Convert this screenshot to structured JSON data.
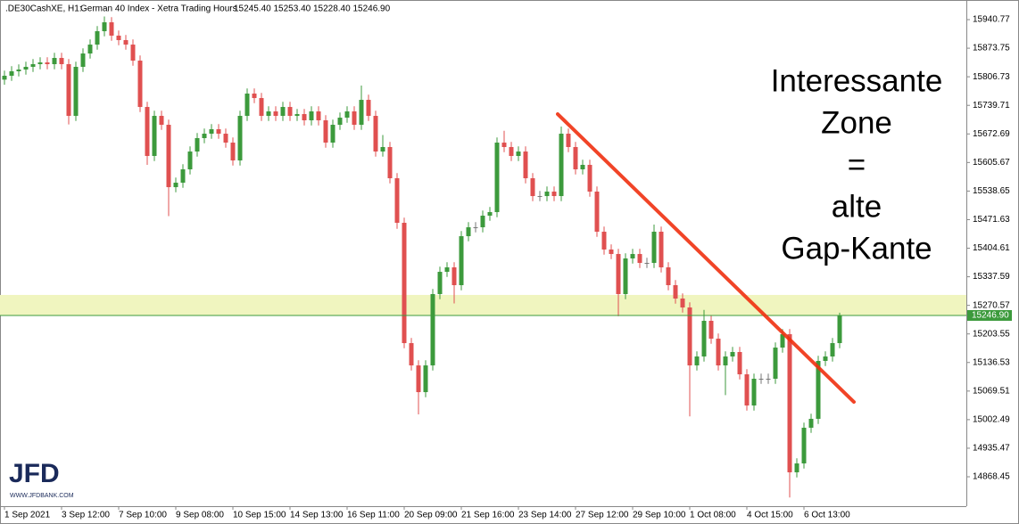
{
  "chart_data": {
    "type": "candlestick",
    "header": {
      "symbol": ".DE30CashXE, H1:",
      "description": "German 40 Index  - Xetra Trading Hours",
      "quote": "15245.40 15253.40 15228.40 15246.90"
    },
    "annotation": [
      "Interessante",
      "Zone",
      "=",
      "alte",
      "Gap-Kante"
    ],
    "logo": {
      "name": "JFD",
      "url": "WWW.JFDBANK.COM"
    },
    "up_color": "#3c9a3c",
    "down_color": "#e05050",
    "xlim": [
      -0.625,
      134.75
    ],
    "ylim": [
      14799.5,
      15986.8
    ],
    "yticks": [
      15940.77,
      15873.75,
      15806.73,
      15739.71,
      15672.69,
      15605.67,
      15538.65,
      15471.63,
      15404.61,
      15337.59,
      15270.57,
      15203.55,
      15136.53,
      15069.51,
      15002.49,
      14935.47,
      14868.45
    ],
    "xticks": [
      {
        "value": 0,
        "label": "1 Sep 2021"
      },
      {
        "value": 8,
        "label": "3 Sep 12:00"
      },
      {
        "value": 16,
        "label": "7 Sep 10:00"
      },
      {
        "value": 24,
        "label": "9 Sep 08:00"
      },
      {
        "value": 32,
        "label": "10 Sep 15:00"
      },
      {
        "value": 40,
        "label": "14 Sep 13:00"
      },
      {
        "value": 48,
        "label": "16 Sep 11:00"
      },
      {
        "value": 56,
        "label": "20 Sep 09:00"
      },
      {
        "value": 64,
        "label": "21 Sep 16:00"
      },
      {
        "value": 72,
        "label": "23 Sep 14:00"
      },
      {
        "value": 80,
        "label": "27 Sep 12:00"
      },
      {
        "value": 88,
        "label": "29 Sep 10:00"
      },
      {
        "value": 96,
        "label": "1 Oct 08:00"
      },
      {
        "value": 104,
        "label": "4 Oct 15:00"
      },
      {
        "value": 112,
        "label": "6 Oct 13:00"
      }
    ],
    "zone": {
      "color": "#f0f5bf",
      "y": [
        15246.9,
        15295.0
      ]
    },
    "price_line": {
      "value": 15246.9,
      "label": "15246.90",
      "color": "#3c9a3c"
    },
    "trendline": {
      "color": "#f03010",
      "x": [
        77.5,
        119
      ],
      "y": [
        15719.2,
        15044.0
      ]
    },
    "opens": [
      15800.0,
      15809.1,
      15819.6,
      15823.7,
      15830.0,
      15836.3,
      15840.4,
      15836.3,
      15850.9,
      15836.3,
      15715.0,
      15830.0,
      15861.3,
      15882.2,
      15913.6,
      15934.5,
      15903.2,
      15892.7,
      15882.2,
      15844.6,
      15735.9,
      15621.0,
      15715.0,
      15694.1,
      15547.8,
      15558.3,
      15589.6,
      15631.4,
      15662.8,
      15673.2,
      15683.7,
      15673.2,
      15652.3,
      15610.5,
      15715.0,
      15767.3,
      15756.8,
      15715.0,
      15725.5,
      15715.0,
      15735.9,
      15715.0,
      15719.2,
      15704.6,
      15725.5,
      15704.6,
      15652.3,
      15694.1,
      15710.8,
      15725.5,
      15694.1,
      15752.6,
      15715.0,
      15631.4,
      15641.9,
      15568.7,
      15464.2,
      15182.0,
      15129.7,
      15067.0,
      15129.7,
      15297.0,
      15349.2,
      15359.7,
      15317.9,
      15432.8,
      15453.7,
      15453.7,
      15480.9,
      15489.3,
      15652.3,
      15641.9,
      15621.0,
      15631.4,
      15568.7,
      15526.9,
      15526.9,
      15537.4,
      15526.9,
      15673.2,
      15641.9,
      15589.6,
      15600.1,
      15537.4,
      15443.3,
      15401.5,
      15391.0,
      15297.0,
      15380.6,
      15391.0,
      15370.1,
      15370.1,
      15443.3,
      15359.7,
      15317.9,
      15286.5,
      15265.6,
      15129.7,
      15150.6,
      15234.3,
      15192.4,
      15129.7,
      15150.6,
      15161.1,
      15108.8,
      15035.7,
      15098.4,
      15098.4,
      15098.4,
      15171.5,
      15202.9,
      14878.9,
      14899.8,
      14983.5,
      15004.4,
      15140.2,
      15150.6,
      15182.0
    ],
    "highs": [
      15821.1,
      15831.6,
      15835.7,
      15842.0,
      15848.3,
      15852.4,
      15852.4,
      15862.9,
      15862.9,
      15848.3,
      15842.0,
      15873.3,
      15894.2,
      15925.6,
      15948.0,
      15946.5,
      15915.2,
      15904.7,
      15894.2,
      15856.6,
      15747.9,
      15727.0,
      15727.0,
      15706.1,
      15570.3,
      15601.6,
      15643.4,
      15674.8,
      15685.2,
      15695.7,
      15695.7,
      15685.2,
      15664.3,
      15727.0,
      15779.3,
      15779.3,
      15768.8,
      15737.5,
      15737.5,
      15747.9,
      15747.9,
      15731.2,
      15731.2,
      15737.5,
      15737.5,
      15716.6,
      15706.1,
      15722.8,
      15737.5,
      15737.5,
      15786.0,
      15764.6,
      15727.0,
      15670.0,
      15653.9,
      15580.7,
      15476.2,
      15194.0,
      15141.7,
      15141.7,
      15309.0,
      15361.2,
      15371.7,
      15371.7,
      15444.8,
      15465.7,
      15465.7,
      15492.9,
      15501.3,
      15664.3,
      15680.0,
      15653.9,
      15643.4,
      15643.4,
      15580.7,
      15538.9,
      15549.4,
      15549.4,
      15690.0,
      15685.2,
      15653.9,
      15612.1,
      15612.1,
      15549.4,
      15455.3,
      15413.5,
      15403.0,
      15392.6,
      15403.0,
      15403.0,
      15382.1,
      15460.0,
      15455.3,
      15371.7,
      15329.9,
      15298.5,
      15277.6,
      15162.6,
      15260.0,
      15246.3,
      15204.4,
      15162.6,
      15173.1,
      15173.1,
      15120.8,
      15110.4,
      15110.4,
      15110.4,
      15183.5,
      15214.9,
      15214.9,
      14911.8,
      14995.5,
      15016.4,
      15152.2,
      15162.6,
      15194.0,
      15253.4
    ],
    "lows": [
      15788.0,
      15797.1,
      15807.6,
      15811.7,
      15818.0,
      15824.3,
      15824.3,
      15824.3,
      15824.3,
      15695.0,
      15703.0,
      15818.0,
      15849.3,
      15870.2,
      15901.6,
      15891.2,
      15880.7,
      15870.2,
      15832.6,
      15723.9,
      15600.0,
      15609.0,
      15682.1,
      15480.0,
      15535.8,
      15546.3,
      15577.6,
      15619.4,
      15650.8,
      15661.2,
      15661.2,
      15640.3,
      15598.5,
      15598.5,
      15703.0,
      15744.8,
      15703.0,
      15703.0,
      15703.0,
      15703.0,
      15703.0,
      15703.0,
      15692.6,
      15692.6,
      15692.6,
      15640.3,
      15640.3,
      15682.1,
      15698.8,
      15682.1,
      15682.1,
      15703.0,
      15619.4,
      15619.4,
      15556.7,
      15450.0,
      15170.0,
      15117.7,
      15014.7,
      15055.0,
      15117.7,
      15285.0,
      15337.2,
      15275.0,
      15305.9,
      15420.8,
      15441.7,
      15441.7,
      15468.9,
      15477.3,
      15629.9,
      15609.0,
      15609.0,
      15556.7,
      15514.9,
      15514.9,
      15514.9,
      15514.9,
      15514.9,
      15629.9,
      15577.6,
      15577.6,
      15525.4,
      15431.3,
      15389.5,
      15379.0,
      15245.0,
      15285.0,
      15368.6,
      15358.1,
      15358.1,
      15358.1,
      15347.7,
      15305.9,
      15274.5,
      15253.6,
      15010.0,
      15117.7,
      15138.6,
      15180.4,
      15117.7,
      15060.0,
      15138.6,
      15096.8,
      15023.7,
      15023.7,
      15086.4,
      15086.4,
      15086.4,
      15159.5,
      14820.0,
      14866.9,
      14887.8,
      14971.5,
      14992.4,
      15128.2,
      15138.6,
      15170.0
    ],
    "closes": [
      15809.1,
      15819.6,
      15823.7,
      15830.0,
      15836.3,
      15840.4,
      15836.3,
      15850.9,
      15836.3,
      15715.0,
      15830.0,
      15861.3,
      15882.2,
      15913.6,
      15934.5,
      15903.2,
      15892.7,
      15882.2,
      15844.6,
      15735.9,
      15621.0,
      15715.0,
      15694.1,
      15547.8,
      15558.3,
      15589.6,
      15631.4,
      15662.8,
      15673.2,
      15683.7,
      15673.2,
      15652.3,
      15610.5,
      15715.0,
      15767.3,
      15756.8,
      15715.0,
      15725.5,
      15715.0,
      15735.9,
      15715.0,
      15719.2,
      15704.6,
      15725.5,
      15704.6,
      15652.3,
      15694.1,
      15710.8,
      15725.5,
      15694.1,
      15752.6,
      15715.0,
      15631.4,
      15641.9,
      15568.7,
      15464.2,
      15182.0,
      15129.7,
      15067.0,
      15129.7,
      15297.0,
      15349.2,
      15359.7,
      15317.9,
      15432.8,
      15453.7,
      15453.7,
      15480.9,
      15489.3,
      15652.3,
      15641.9,
      15621.0,
      15631.4,
      15568.7,
      15526.9,
      15526.9,
      15537.4,
      15526.9,
      15673.2,
      15641.9,
      15589.6,
      15600.1,
      15537.4,
      15443.3,
      15401.5,
      15391.0,
      15297.0,
      15380.6,
      15391.0,
      15370.1,
      15370.1,
      15443.3,
      15359.7,
      15317.9,
      15286.5,
      15265.6,
      15129.7,
      15150.6,
      15234.3,
      15192.4,
      15129.7,
      15150.6,
      15161.1,
      15108.8,
      15035.7,
      15098.4,
      15098.4,
      15098.4,
      15171.5,
      15202.9,
      14878.9,
      14899.8,
      14983.5,
      15004.4,
      15140.2,
      15150.6,
      15182.0,
      15246.9
    ]
  }
}
